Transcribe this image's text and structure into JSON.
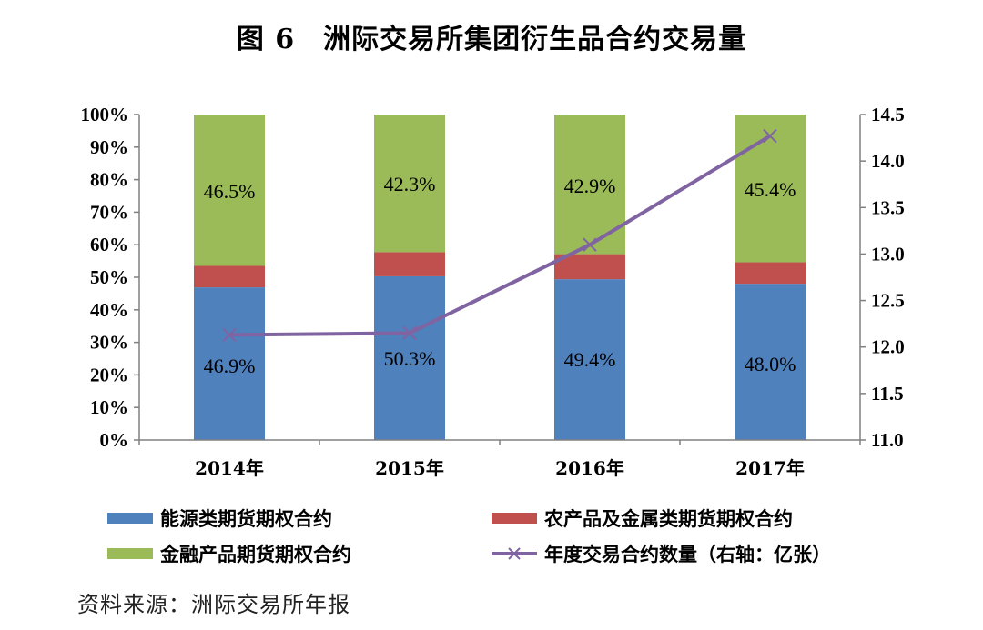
{
  "title": "图 6　洲际交易所集团衍生品合约交易量",
  "source_note": "资料来源：洲际交易所年报",
  "colors": {
    "energy": "#4f81bd",
    "agri_metal": "#c0504d",
    "financial": "#9bbb59",
    "line": "#8064a2"
  },
  "chart_data": {
    "type": "bar",
    "stacked": true,
    "categories": [
      "2014年",
      "2015年",
      "2016年",
      "2017年"
    ],
    "series": [
      {
        "name": "能源类期货期权合约",
        "values": [
          46.9,
          50.3,
          49.4,
          48.0
        ],
        "labels": [
          "46.9%",
          "50.3%",
          "49.4%",
          "48.0%"
        ]
      },
      {
        "name": "农产品及金属类期货期权合约",
        "values": [
          6.6,
          7.4,
          7.7,
          6.6
        ],
        "labels": []
      },
      {
        "name": "金融产品期货期权合约",
        "values": [
          46.5,
          42.3,
          42.9,
          45.4
        ],
        "labels": [
          "46.5%",
          "42.3%",
          "42.9%",
          "45.4%"
        ]
      }
    ],
    "line_series": {
      "name": "年度交易合约数量（右轴：亿张）",
      "values": [
        12.13,
        12.15,
        13.1,
        14.27
      ],
      "axis": "right"
    },
    "ylim_left": [
      0,
      100
    ],
    "ylim_right": [
      11.0,
      14.5
    ],
    "left_ticks": [
      "0%",
      "10%",
      "20%",
      "30%",
      "40%",
      "50%",
      "60%",
      "70%",
      "80%",
      "90%",
      "100%"
    ],
    "right_ticks": [
      "11.0",
      "11.5",
      "12.0",
      "12.5",
      "13.0",
      "13.5",
      "14.0",
      "14.5"
    ],
    "grid": false,
    "legend_position": "bottom"
  },
  "legend": {
    "energy": "能源类期货期权合约",
    "agri_metal": "农产品及金属类期货期权合约",
    "financial": "金融产品期货期权合约",
    "line": "年度交易合约数量（右轴：亿张）"
  }
}
